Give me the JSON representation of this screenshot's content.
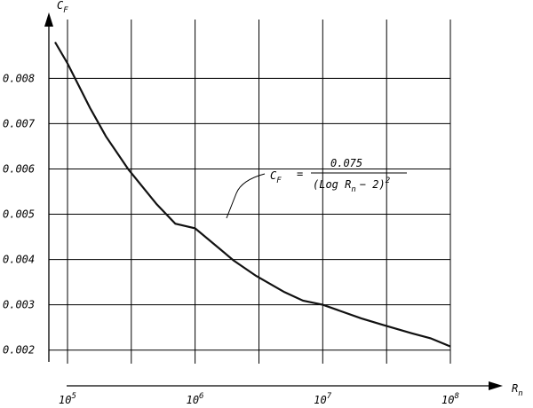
{
  "chart_data": {
    "type": "line",
    "xscale": "log",
    "xlabel": "R",
    "xlabel_sub": "n",
    "ylabel": "C",
    "ylabel_sub": "F",
    "xlim": [
      75000,
      100000000
    ],
    "ylim": [
      0.0017,
      0.0093
    ],
    "grid": true,
    "x_ticks": [
      {
        "value": 100000,
        "base": "10",
        "exp": "5"
      },
      {
        "value": 1000000,
        "base": "10",
        "exp": "6"
      },
      {
        "value": 10000000,
        "base": "10",
        "exp": "7"
      },
      {
        "value": 100000000,
        "base": "10",
        "exp": "8"
      }
    ],
    "y_ticks": [
      {
        "value": 0.002,
        "label": "0.002"
      },
      {
        "value": 0.003,
        "label": "0.003"
      },
      {
        "value": 0.004,
        "label": "0.004"
      },
      {
        "value": 0.005,
        "label": "0.005"
      },
      {
        "value": 0.006,
        "label": "0.006"
      },
      {
        "value": 0.007,
        "label": "0.007"
      },
      {
        "value": 0.008,
        "label": "0.008"
      }
    ],
    "series": [
      {
        "x": [
          80000,
          100000,
          150000,
          200000,
          300000,
          500000,
          700000,
          1000000,
          2000000,
          3000000,
          5000000,
          7000000,
          10000000,
          20000000,
          30000000,
          50000000,
          70000000,
          100000000
        ],
        "y": [
          0.0088,
          0.00833,
          0.00735,
          0.00672,
          0.00599,
          0.00522,
          0.00479,
          0.00469,
          0.00398,
          0.00364,
          0.00328,
          0.00309,
          0.003,
          0.0027,
          0.00255,
          0.00237,
          0.00226,
          0.00208
        ]
      }
    ],
    "annotation": {
      "lhs": "C",
      "lhs_sub": "F",
      "equals": "=",
      "numerator": "0.075",
      "den_prefix": "(Log R",
      "den_sub": "n",
      "den_suffix": "− 2)",
      "den_sup": "2"
    }
  }
}
